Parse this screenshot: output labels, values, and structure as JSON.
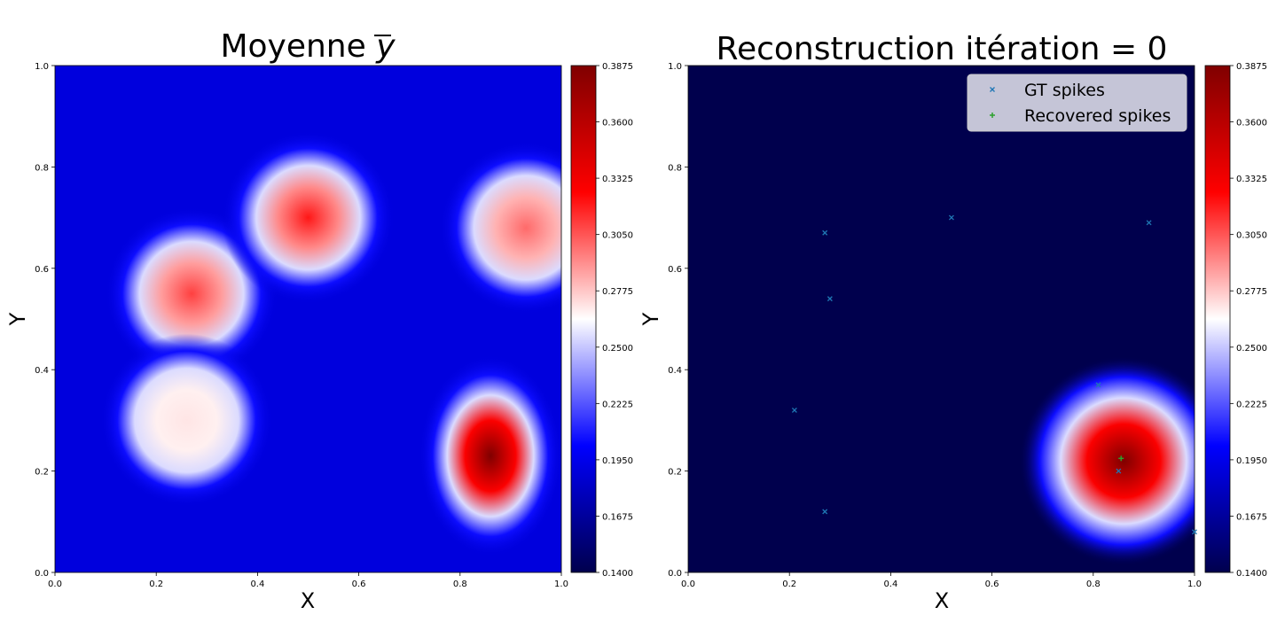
{
  "figure": {
    "panels": [
      {
        "title_main": "Moyenne ",
        "title_symbol": "y",
        "xlabel": "X",
        "ylabel": "Y"
      },
      {
        "title_main": "Reconstruction itération = 0",
        "xlabel": "X",
        "ylabel": "Y"
      }
    ]
  },
  "chart_data": [
    {
      "type": "heatmap",
      "title": "Moyenne y̅",
      "xlabel": "X",
      "ylabel": "Y",
      "xlim": [
        0,
        1
      ],
      "ylim": [
        0,
        1
      ],
      "xticks": [
        "0.0",
        "0.2",
        "0.4",
        "0.6",
        "0.8",
        "1.0"
      ],
      "yticks": [
        "0.0",
        "0.2",
        "0.4",
        "0.6",
        "0.8",
        "1.0"
      ],
      "colormap": "seismic",
      "background_value": 0.19,
      "colorbar": {
        "min": 0.14,
        "max": 0.3875,
        "ticks": [
          "0.1400",
          "0.1675",
          "0.1950",
          "0.2225",
          "0.2500",
          "0.2775",
          "0.3050",
          "0.3325",
          "0.3600",
          "0.3875"
        ]
      },
      "blobs": [
        {
          "x": 0.86,
          "y": 0.23,
          "peak": 0.39
        },
        {
          "x": 0.27,
          "y": 0.55,
          "peak": 0.31
        },
        {
          "x": 0.5,
          "y": 0.7,
          "peak": 0.32
        },
        {
          "x": 0.93,
          "y": 0.68,
          "peak": 0.3
        },
        {
          "x": 0.26,
          "y": 0.3,
          "peak": 0.27
        }
      ]
    },
    {
      "type": "heatmap",
      "title": "Reconstruction itération = 0",
      "xlabel": "X",
      "ylabel": "Y",
      "xlim": [
        0,
        1
      ],
      "ylim": [
        0,
        1
      ],
      "xticks": [
        "0.0",
        "0.2",
        "0.4",
        "0.6",
        "0.8",
        "1.0"
      ],
      "yticks": [
        "0.0",
        "0.2",
        "0.4",
        "0.6",
        "0.8",
        "1.0"
      ],
      "colormap": "seismic",
      "background_value": 0.14,
      "colorbar": {
        "min": 0.14,
        "max": 0.3875,
        "ticks": [
          "0.1400",
          "0.1675",
          "0.1950",
          "0.2225",
          "0.2500",
          "0.2775",
          "0.3050",
          "0.3325",
          "0.3600",
          "0.3875"
        ]
      },
      "blobs": [
        {
          "x": 0.86,
          "y": 0.22,
          "peak": 0.39
        }
      ],
      "legend": {
        "placement": "top-right",
        "entries": [
          {
            "label": "GT spikes",
            "marker": "x",
            "color": "#1f77b4"
          },
          {
            "label": "Recovered spikes",
            "marker": "+",
            "color": "#2ca02c"
          }
        ]
      },
      "series": [
        {
          "name": "GT spikes",
          "marker": "x",
          "color": "#1f77b4",
          "points": [
            {
              "x": 0.27,
              "y": 0.67
            },
            {
              "x": 0.52,
              "y": 0.7
            },
            {
              "x": 0.91,
              "y": 0.69
            },
            {
              "x": 0.28,
              "y": 0.54
            },
            {
              "x": 0.21,
              "y": 0.32
            },
            {
              "x": 0.81,
              "y": 0.37
            },
            {
              "x": 0.85,
              "y": 0.2
            },
            {
              "x": 0.27,
              "y": 0.12
            },
            {
              "x": 1.0,
              "y": 0.08
            }
          ]
        },
        {
          "name": "Recovered spikes",
          "marker": "+",
          "color": "#2ca02c",
          "points": [
            {
              "x": 0.855,
              "y": 0.225
            }
          ]
        }
      ]
    }
  ]
}
